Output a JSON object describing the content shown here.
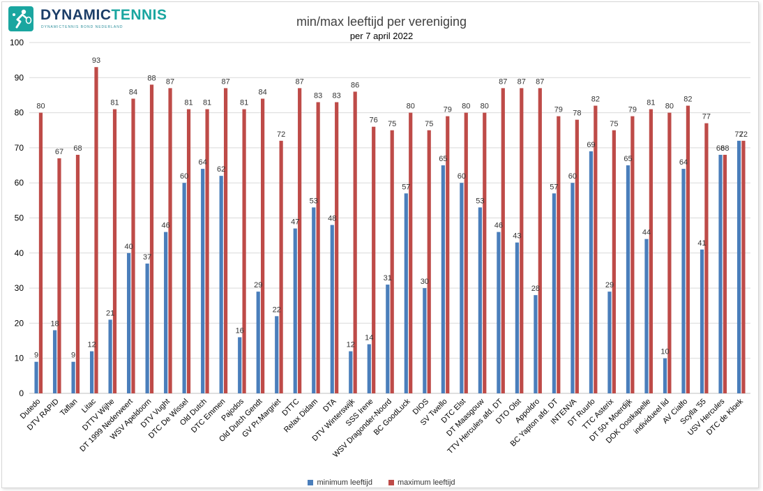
{
  "logo": {
    "word1": "DYNAMIC",
    "word2": "TENNIS",
    "tagline": "DYNAMICTENNIS BOND NEDERLAND",
    "icon": "tennis-player-icon"
  },
  "colors": {
    "min": "#4a7ebb",
    "max": "#be4b48",
    "grid": "#d9d9d9",
    "logo_dark": "#1c3e68",
    "logo_teal": "#1aa6a0"
  },
  "chart_data": {
    "type": "bar",
    "title": "min/max leeftijd per vereniging",
    "subtitle": "per 7  april 2022",
    "xlabel": "",
    "ylabel": "",
    "ylim": [
      0,
      100
    ],
    "yticks": [
      0,
      10,
      20,
      30,
      40,
      50,
      60,
      70,
      80,
      90,
      100
    ],
    "grid": true,
    "legend_position": "bottom",
    "categories": [
      "Dutedo",
      "DTV RAPID",
      "Taflan",
      "Litac",
      "DTTV Wijhe",
      "DT 1999 Nederweert",
      "WSV Apeldoorn",
      "DTV Vught",
      "DTC De Wissel",
      "Old Dutch",
      "DTC Emmen",
      "Pajodos",
      "Old Dutch Gendt",
      "GV Pr.Margriet",
      "DTTC",
      "Relax Didam",
      "DTA",
      "DTV Winterswijk",
      "SSS Irene",
      "WSV Dragonder-Noord",
      "BC GoodLuck",
      "DIOS",
      "SV Twello",
      "DTC Elst",
      "DT Maasgouw",
      "TTV Hercules afd. DT",
      "DTO Olst",
      "Appoldro",
      "BC Yapton afd. DT",
      "INTENVA",
      "DT Ruurlo",
      "TTC Asterix",
      "DT 50+ Moerdijk",
      "DOK Oostkapelle",
      "individueel lid",
      "AV Cialfo",
      "Scylla '55",
      "USV Hercules",
      "DTC de Kloek"
    ],
    "series": [
      {
        "name": "minimum leeftijd",
        "values": [
          9,
          18,
          9,
          12,
          21,
          40,
          37,
          46,
          60,
          64,
          62,
          16,
          29,
          22,
          47,
          53,
          48,
          12,
          14,
          31,
          57,
          30,
          65,
          60,
          53,
          46,
          43,
          28,
          57,
          60,
          69,
          29,
          65,
          44,
          10,
          64,
          41,
          68,
          72
        ]
      },
      {
        "name": "maximum leeftijd",
        "values": [
          80,
          67,
          68,
          93,
          81,
          84,
          88,
          87,
          81,
          81,
          87,
          81,
          84,
          72,
          87,
          83,
          83,
          86,
          76,
          75,
          80,
          75,
          79,
          80,
          80,
          87,
          87,
          87,
          79,
          78,
          82,
          75,
          79,
          81,
          80,
          82,
          77,
          68,
          72
        ]
      }
    ]
  }
}
